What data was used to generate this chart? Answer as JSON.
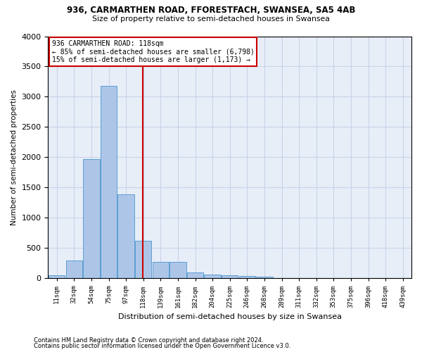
{
  "title1": "936, CARMARTHEN ROAD, FFORESTFACH, SWANSEA, SA5 4AB",
  "title2": "Size of property relative to semi-detached houses in Swansea",
  "xlabel": "Distribution of semi-detached houses by size in Swansea",
  "ylabel": "Number of semi-detached properties",
  "footnote1": "Contains HM Land Registry data © Crown copyright and database right 2024.",
  "footnote2": "Contains public sector information licensed under the Open Government Licence v3.0.",
  "annotation_title": "936 CARMARTHEN ROAD: 118sqm",
  "annotation_line1": "← 85% of semi-detached houses are smaller (6,798)",
  "annotation_line2": "15% of semi-detached houses are larger (1,173) →",
  "bar_heights": [
    50,
    300,
    1975,
    3175,
    1390,
    625,
    275,
    275,
    100,
    60,
    50,
    40,
    30,
    10,
    5,
    3,
    2,
    2,
    2,
    2
  ],
  "bar_color": "#adc6e8",
  "bar_edge_color": "#5a9fd4",
  "vline_color": "#cc0000",
  "vline_bar_index": 5,
  "ylim": [
    0,
    4000
  ],
  "yticks": [
    0,
    500,
    1000,
    1500,
    2000,
    2500,
    3000,
    3500,
    4000
  ],
  "grid_color": "#c8d4e8",
  "background_color": "#e8eef8",
  "tick_labels": [
    "11sqm",
    "32sqm",
    "54sqm",
    "75sqm",
    "97sqm",
    "118sqm",
    "139sqm",
    "161sqm",
    "182sqm",
    "204sqm",
    "225sqm",
    "246sqm",
    "268sqm",
    "289sqm",
    "311sqm",
    "332sqm",
    "353sqm",
    "375sqm",
    "396sqm",
    "418sqm",
    "439sqm"
  ]
}
